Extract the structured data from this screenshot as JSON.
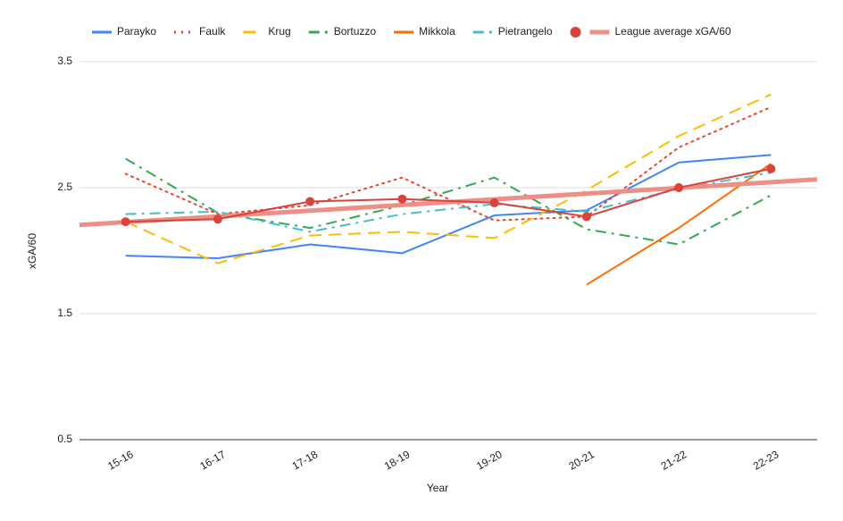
{
  "chart_data": {
    "type": "line",
    "x_label": "Year",
    "y_label": "xGA/60",
    "categories": [
      "15-16",
      "16-17",
      "17-18",
      "18-19",
      "19-20",
      "20-21",
      "21-22",
      "22-23"
    ],
    "ylim": [
      0.5,
      3.5
    ],
    "yticks": [
      0.5,
      1.5,
      2.5,
      3.5
    ],
    "grid": true,
    "legend": "top",
    "series": [
      {
        "name": "Parayko",
        "color": "#4285f4",
        "style": "solid",
        "values": [
          1.96,
          1.94,
          2.05,
          1.98,
          2.28,
          2.32,
          2.7,
          2.76
        ]
      },
      {
        "name": "Faulk",
        "color": "#ea4335",
        "style": "dotted",
        "values": [
          2.61,
          2.29,
          2.36,
          2.58,
          2.24,
          2.27,
          2.82,
          3.14
        ]
      },
      {
        "name": "Krug",
        "color": "#fbbc04",
        "style": "dashed",
        "values": [
          2.23,
          1.9,
          2.12,
          2.15,
          2.1,
          2.48,
          2.91,
          3.24
        ]
      },
      {
        "name": "Bortuzzo",
        "color": "#34a853",
        "style": "dashdot",
        "values": [
          2.73,
          2.3,
          2.18,
          2.36,
          2.58,
          2.17,
          2.05,
          2.44
        ]
      },
      {
        "name": "Mikkola",
        "color": "#ff6d01",
        "style": "solid",
        "values": [
          null,
          null,
          null,
          null,
          null,
          1.73,
          2.18,
          2.69
        ]
      },
      {
        "name": "Pietrangelo",
        "color": "#46bdc6",
        "style": "dashdot",
        "values": [
          2.29,
          2.31,
          2.15,
          2.29,
          2.37,
          2.31,
          2.49,
          2.62
        ]
      },
      {
        "name": "League average xGA/60",
        "color": "#d9433a",
        "style": "solid",
        "markers": true,
        "trendline": "#ee8f87",
        "values": [
          2.23,
          2.25,
          2.39,
          2.41,
          2.38,
          2.27,
          2.5,
          2.65
        ]
      }
    ]
  }
}
